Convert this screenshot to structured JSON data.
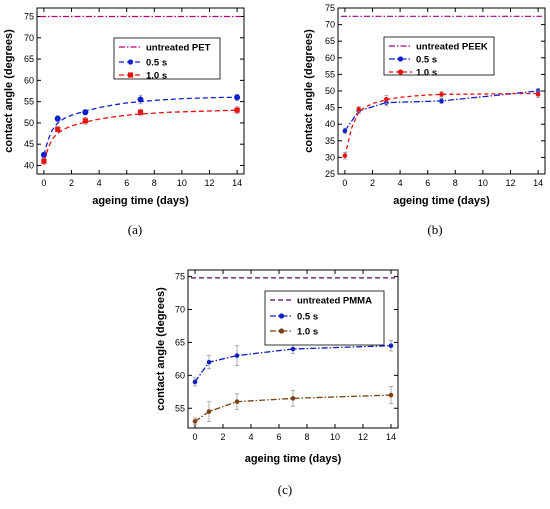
{
  "chart_data": [
    {
      "type": "line",
      "panel_label": "(a)",
      "xlabel": "ageing time (days)",
      "ylabel": "contact angle (degrees)",
      "xlim": [
        -0.5,
        14.5
      ],
      "ylim": [
        38,
        77
      ],
      "xticks": [
        0,
        2,
        4,
        6,
        8,
        10,
        12,
        14
      ],
      "yticks": [
        40,
        45,
        50,
        55,
        60,
        65,
        70,
        75
      ],
      "legend_position": "top-right",
      "reference": {
        "name": "untreated PET",
        "value": 75,
        "color": "#c0007a",
        "dash": "6,2,1.5,2"
      },
      "series": [
        {
          "name": "0.5 s",
          "color": "#1020d0",
          "marker": "circle",
          "dash": "5,3",
          "x": [
            0,
            1,
            3,
            7,
            14
          ],
          "y": [
            42.5,
            51,
            52.5,
            55.5,
            56
          ],
          "err": [
            0.6,
            0.7,
            0.6,
            1.0,
            0.7
          ],
          "fit_x": [
            0,
            0.3,
            0.6,
            1,
            1.5,
            2,
            3,
            4,
            5,
            6,
            7,
            8,
            9,
            10,
            11,
            12,
            13,
            14
          ],
          "fit_y": [
            42.5,
            46,
            48.3,
            50,
            51.1,
            51.8,
            52.8,
            53.6,
            54.2,
            54.7,
            55.0,
            55.3,
            55.5,
            55.7,
            55.8,
            55.9,
            56.0,
            56.0
          ]
        },
        {
          "name": "1.0 s",
          "color": "#e81010",
          "marker": "square",
          "dash": "5,3",
          "x": [
            0,
            1,
            3,
            7,
            14
          ],
          "y": [
            41,
            48.5,
            50.5,
            52.5,
            53
          ],
          "err": [
            0.7,
            0.6,
            0.8,
            0.7,
            0.8
          ],
          "fit_x": [
            0,
            0.3,
            0.6,
            1,
            1.5,
            2,
            3,
            4,
            5,
            6,
            7,
            8,
            9,
            10,
            11,
            12,
            13,
            14
          ],
          "fit_y": [
            41,
            44,
            46.2,
            47.6,
            48.6,
            49.3,
            50.2,
            50.9,
            51.4,
            51.8,
            52.1,
            52.3,
            52.5,
            52.6,
            52.7,
            52.8,
            52.9,
            53.0
          ]
        }
      ]
    },
    {
      "type": "line",
      "panel_label": "(b)",
      "xlabel": "ageing time (days)",
      "ylabel": "contact angle (degrees)",
      "xlim": [
        -0.5,
        14.5
      ],
      "ylim": [
        25,
        75
      ],
      "xticks": [
        0,
        2,
        4,
        6,
        8,
        10,
        12,
        14
      ],
      "yticks": [
        25,
        30,
        35,
        40,
        45,
        50,
        55,
        60,
        65,
        70,
        75
      ],
      "legend_position": "top-right",
      "reference": {
        "name": "untreated PEEK",
        "value": 72.5,
        "color": "#a0008a",
        "dash": "6,2,1.5,2"
      },
      "series": [
        {
          "name": "0.5 s",
          "color": "#1020d0",
          "marker": "circle",
          "dash": "6,2,1.5,2",
          "x": [
            0,
            1,
            3,
            7,
            14
          ],
          "y": [
            38,
            44,
            46.5,
            47,
            50
          ],
          "err": [
            0.8,
            0.7,
            1.0,
            0.8,
            0.8
          ],
          "fit_x": [
            0,
            1,
            3,
            7,
            14
          ],
          "fit_y": [
            38,
            44,
            46.5,
            47,
            50
          ]
        },
        {
          "name": "1.0 s",
          "color": "#e81010",
          "marker": "circle",
          "dash": "4,3",
          "x": [
            0,
            1,
            3,
            7,
            14
          ],
          "y": [
            30.5,
            44.5,
            47.5,
            49,
            49
          ],
          "err": [
            1.0,
            0.8,
            1.2,
            0.8,
            1.0
          ],
          "fit_x": [
            0,
            0.5,
            1,
            1.5,
            2,
            3,
            4,
            5,
            6,
            7,
            8,
            10,
            12,
            14
          ],
          "fit_y": [
            30.5,
            39,
            43.7,
            45.2,
            46.2,
            47.4,
            48.1,
            48.5,
            48.8,
            49,
            49,
            49.1,
            49.2,
            49.2
          ]
        }
      ]
    },
    {
      "type": "line",
      "panel_label": "(c)",
      "xlabel": "ageing time (days)",
      "ylabel": "contact angle (degrees)",
      "xlim": [
        -0.5,
        14.5
      ],
      "ylim": [
        52,
        76
      ],
      "xticks": [
        0,
        2,
        4,
        6,
        8,
        10,
        12,
        14
      ],
      "yticks": [
        55,
        60,
        65,
        70,
        75
      ],
      "legend_position": "top-right",
      "reference": {
        "name": "untreated PMMA",
        "value": 74.8,
        "color": "#600060",
        "dash": "5,3"
      },
      "series": [
        {
          "name": "0.5 s",
          "color": "#1020c0",
          "marker": "circle",
          "dash": "6,2,1.5,2",
          "x": [
            0,
            1,
            3,
            7,
            14
          ],
          "y": [
            59,
            62,
            63,
            64,
            64.5
          ],
          "err": [
            0.6,
            1.0,
            1.5,
            0.7,
            0.8
          ],
          "fit_x": [
            0,
            1,
            3,
            7,
            14
          ],
          "fit_y": [
            59,
            62,
            63,
            64,
            64.5
          ]
        },
        {
          "name": "1.0 s",
          "color": "#7a4010",
          "marker": "circle",
          "dash": "6,2,1.5,2",
          "x": [
            0,
            1,
            3,
            7,
            14
          ],
          "y": [
            53,
            54.5,
            56,
            56.5,
            57
          ],
          "err": [
            0.5,
            1.5,
            1.2,
            1.2,
            1.3
          ],
          "fit_x": [
            0,
            1,
            3,
            7,
            14
          ],
          "fit_y": [
            53,
            54.5,
            56,
            56.5,
            57
          ]
        }
      ]
    }
  ]
}
